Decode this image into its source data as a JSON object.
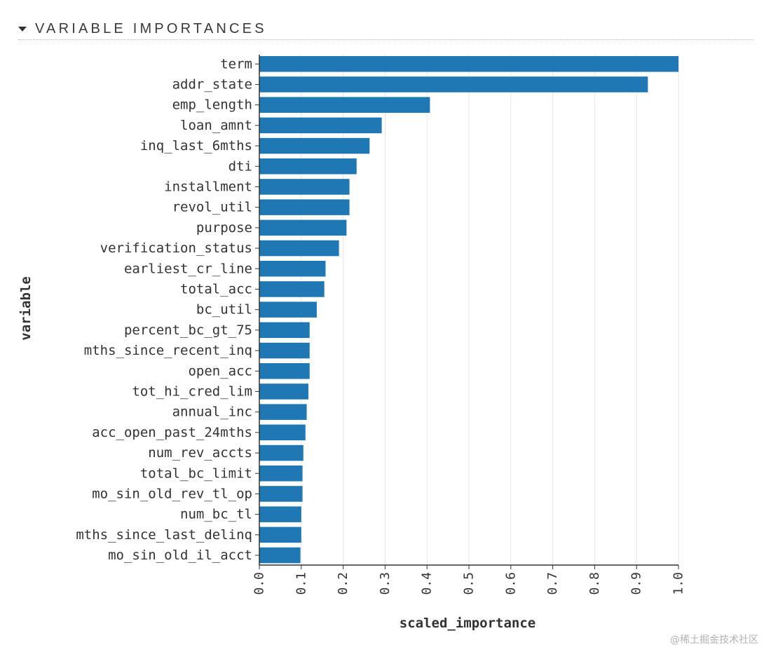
{
  "section": {
    "title": "VARIABLE IMPORTANCES",
    "toggle_icon": "caret-down-icon"
  },
  "colors": {
    "bar": "#1f77b4",
    "grid": "#e6e6e6",
    "axis": "#333333",
    "text": "#333333"
  },
  "chart_data": {
    "type": "bar",
    "orientation": "horizontal",
    "title": "",
    "xlabel": "scaled_importance",
    "ylabel": "variable",
    "xlim": [
      0,
      1.0
    ],
    "x_ticks": [
      "0.0",
      "0.1",
      "0.2",
      "0.3",
      "0.4",
      "0.5",
      "0.6",
      "0.7",
      "0.8",
      "0.9",
      "1.0"
    ],
    "grid": true,
    "categories": [
      "term",
      "addr_state",
      "emp_length",
      "loan_amnt",
      "inq_last_6mths",
      "dti",
      "installment",
      "revol_util",
      "purpose",
      "verification_status",
      "earliest_cr_line",
      "total_acc",
      "bc_util",
      "percent_bc_gt_75",
      "mths_since_recent_inq",
      "open_acc",
      "tot_hi_cred_lim",
      "annual_inc",
      "acc_open_past_24mths",
      "num_rev_accts",
      "total_bc_limit",
      "mo_sin_old_rev_tl_op",
      "num_bc_tl",
      "mths_since_last_delinq",
      "mo_sin_old_il_acct"
    ],
    "values": [
      1.0,
      0.927,
      0.407,
      0.292,
      0.263,
      0.232,
      0.215,
      0.215,
      0.208,
      0.19,
      0.158,
      0.155,
      0.137,
      0.12,
      0.12,
      0.12,
      0.117,
      0.113,
      0.11,
      0.105,
      0.103,
      0.103,
      0.1,
      0.1,
      0.098
    ]
  },
  "watermark": "@稀土掘金技术社区"
}
